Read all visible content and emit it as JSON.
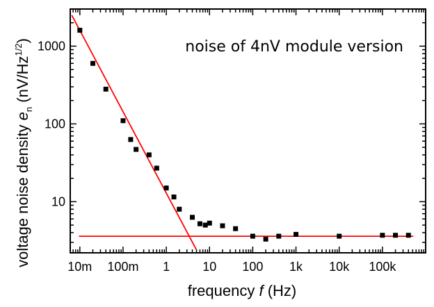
{
  "chart_data": {
    "type": "scatter",
    "title": "",
    "annotation": "noise of 4nV module version",
    "xlabel": {
      "prefix": "frequency ",
      "symbol": "f",
      "suffix": " (Hz)"
    },
    "ylabel": {
      "prefix": "voltage noise density ",
      "symbol": "e",
      "subscript": "n",
      "suffix": " (nV/Hz",
      "superscript": "1/2",
      "close": ")"
    },
    "xscale": "log",
    "yscale": "log",
    "xlim": [
      0.006,
      1000000
    ],
    "ylim": [
      2.2,
      3000
    ],
    "grid": false,
    "legend": "none",
    "x_ticks": [
      {
        "value": 0.01,
        "label": "10m"
      },
      {
        "value": 0.1,
        "label": "100m"
      },
      {
        "value": 1,
        "label": "1"
      },
      {
        "value": 10,
        "label": "10"
      },
      {
        "value": 100,
        "label": "100"
      },
      {
        "value": 1000,
        "label": "1k"
      },
      {
        "value": 10000,
        "label": "10k"
      },
      {
        "value": 100000,
        "label": "100k"
      }
    ],
    "y_ticks": [
      {
        "value": 10,
        "label": "10"
      },
      {
        "value": 100,
        "label": "100"
      },
      {
        "value": 1000,
        "label": "1000"
      }
    ],
    "series": [
      {
        "type": "scatter",
        "color": "#000000",
        "x": [
          0.01,
          0.02,
          0.04,
          0.1,
          0.15,
          0.2,
          0.4,
          0.6,
          1,
          1.5,
          2,
          4,
          6,
          8,
          10,
          20,
          40,
          100,
          200,
          400,
          1000,
          10000,
          100000,
          200000,
          400000
        ],
        "y": [
          1600,
          600,
          280,
          110,
          63,
          47,
          40,
          27,
          15,
          11.5,
          8,
          6.3,
          5.2,
          5.0,
          5.3,
          4.9,
          4.5,
          3.6,
          3.3,
          3.6,
          3.8,
          3.6,
          3.7,
          3.7,
          3.7
        ]
      },
      {
        "type": "line",
        "color": "#ff0000",
        "x": [
          0.0065,
          5
        ],
        "y": [
          2500,
          2.4
        ]
      },
      {
        "type": "line",
        "color": "#ff0000",
        "x": [
          0.0095,
          520000
        ],
        "y": [
          3.6,
          3.6
        ]
      }
    ]
  }
}
